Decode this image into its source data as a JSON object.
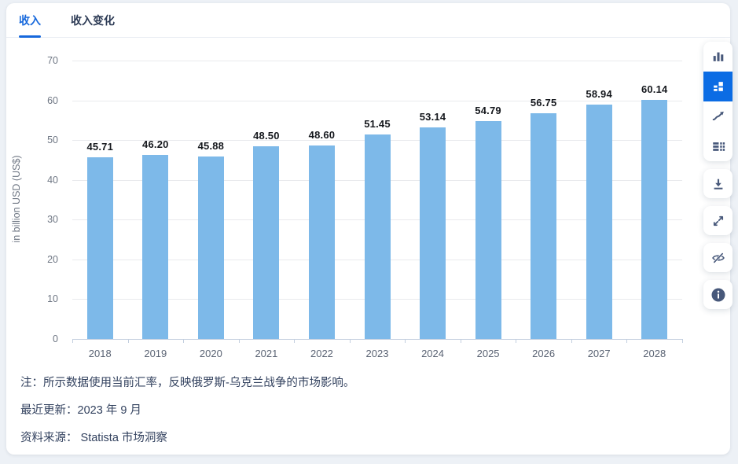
{
  "tabs": [
    {
      "label": "收入",
      "active": true
    },
    {
      "label": "收入变化",
      "active": false
    }
  ],
  "chart_data": {
    "type": "bar",
    "categories": [
      "2018",
      "2019",
      "2020",
      "2021",
      "2022",
      "2023",
      "2024",
      "2025",
      "2026",
      "2027",
      "2028"
    ],
    "values": [
      45.71,
      46.2,
      45.88,
      48.5,
      48.6,
      51.45,
      53.14,
      54.79,
      56.75,
      58.94,
      60.14
    ],
    "title": "",
    "xlabel": "",
    "ylabel": "in billion USD (US$)",
    "ylim": [
      0,
      70
    ],
    "ytick_step": 10,
    "grid": true,
    "legend": false,
    "bar_color": "#7db9e9",
    "value_label_decimals": 2
  },
  "toolbar": {
    "icons": [
      "column-chart",
      "block-chart",
      "line-chart",
      "table",
      "download",
      "fullscreen",
      "hide",
      "info"
    ],
    "selected": "block-chart"
  },
  "footnotes": {
    "note": "注：所示数据使用当前汇率，反映俄罗斯-乌克兰战争的市场影响。",
    "updated": "最近更新：2023 年 9 月",
    "source": "资料来源： Statista 市场洞察"
  },
  "colors": {
    "accent": "#0b6ce4",
    "tab_active": "#1668dc",
    "bar": "#7db9e9",
    "icon": "#47587a",
    "page_background": "#edf1f6"
  }
}
